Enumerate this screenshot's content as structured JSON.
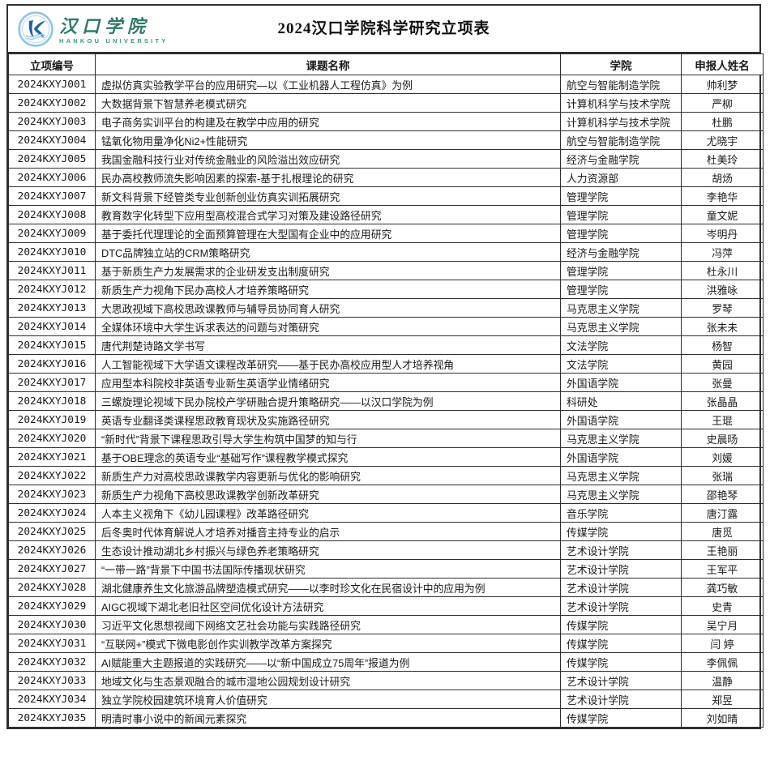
{
  "page": {
    "background": "#ffffff",
    "border_color": "#2f2f2f"
  },
  "header": {
    "logo": {
      "emblem_icon": "university-emblem-icon",
      "emblem_blue": "#1d5fa8",
      "emblem_ring_blue": "#8fc3e8",
      "name_zh": "汉口学院",
      "name_en": "HANKOU  UNIVERSITY",
      "name_zh_color": "#2f7a6e",
      "name_en_color": "#2e9e77"
    },
    "title": "2024汉口学院科学研究立项表"
  },
  "table": {
    "columns": [
      "立项编号",
      "课题名称",
      "学院",
      "申报人姓名"
    ],
    "rows": [
      {
        "id": "2024KXYJ001",
        "title": "虚拟仿真实验教学平台的应用研究—以《工业机器人工程仿真》为例",
        "college": "航空与智能制造学院",
        "applicant": "帅利梦"
      },
      {
        "id": "2024KXYJ002",
        "title": "大数据背景下智慧养老模式研究",
        "college": "计算机科学与技术学院",
        "applicant": "严柳"
      },
      {
        "id": "2024KXYJ003",
        "title": "电子商务实训平台的构建及在教学中应用的研究",
        "college": "计算机科学与技术学院",
        "applicant": "杜鹏"
      },
      {
        "id": "2024KXYJ004",
        "title": "锰氧化物用量净化Ni2+性能研究",
        "college": "航空与智能制造学院",
        "applicant": "尤晓宇"
      },
      {
        "id": "2024KXYJ005",
        "title": "我国金融科技行业对传统金融业的风险溢出效应研究",
        "college": "经济与金融学院",
        "applicant": "杜美玲"
      },
      {
        "id": "2024KXYJ006",
        "title": "民办高校教师流失影响因素的探索-基于扎根理论的研究",
        "college": "人力资源部",
        "applicant": "胡炀"
      },
      {
        "id": "2024KXYJ007",
        "title": "新文科背景下经管类专业创新创业仿真实训拓展研究",
        "college": "管理学院",
        "applicant": "李艳华"
      },
      {
        "id": "2024KXYJ008",
        "title": "教育数字化转型下应用型高校混合式学习对策及建设路径研究",
        "college": "管理学院",
        "applicant": "童文妮"
      },
      {
        "id": "2024KXYJ009",
        "title": "基于委托代理理论的全面预算管理在大型国有企业中的应用研究",
        "college": "管理学院",
        "applicant": "岑明丹"
      },
      {
        "id": "2024KXYJ010",
        "title": "DTC品牌独立站的CRM策略研究",
        "college": "经济与金融学院",
        "applicant": "冯萍"
      },
      {
        "id": "2024KXYJ011",
        "title": "基于新质生产力发展需求的企业研发支出制度研究",
        "college": "管理学院",
        "applicant": "杜永川"
      },
      {
        "id": "2024KXYJ012",
        "title": "新质生产力视角下民办高校人才培养策略研究",
        "college": "管理学院",
        "applicant": "洪雅咏"
      },
      {
        "id": "2024KXYJ013",
        "title": "大思政视域下高校思政课教师与辅导员协同育人研究",
        "college": "马克思主义学院",
        "applicant": "罗琴"
      },
      {
        "id": "2024KXYJ014",
        "title": "全媒体环境中大学生诉求表达的问题与对策研究",
        "college": "马克思主义学院",
        "applicant": "张未未"
      },
      {
        "id": "2024KXYJ015",
        "title": "唐代荆楚诗路文学书写",
        "college": "文法学院",
        "applicant": "杨智"
      },
      {
        "id": "2024KXYJ016",
        "title": "人工智能视域下大学语文课程改革研究——基于民办高校应用型人才培养视角",
        "college": "文法学院",
        "applicant": "黄园"
      },
      {
        "id": "2024KXYJ017",
        "title": "应用型本科院校非英语专业新生英语学业情绪研究",
        "college": "外国语学院",
        "applicant": "张曼"
      },
      {
        "id": "2024KXYJ018",
        "title": "三螺旋理论视域下民办院校产学研融合提升策略研究——以汉口学院为例",
        "college": "科研处",
        "applicant": "张晶晶"
      },
      {
        "id": "2024KXYJ019",
        "title": "英语专业翻译类课程思政教育现状及实施路径研究",
        "college": "外国语学院",
        "applicant": "王琨"
      },
      {
        "id": "2024KXYJ020",
        "title": "“新时代”背景下课程思政引导大学生构筑中国梦的知与行",
        "college": "马克思主义学院",
        "applicant": "史晨旸"
      },
      {
        "id": "2024KXYJ021",
        "title": "基于OBE理念的英语专业“基础写作”课程教学模式探究",
        "college": "外国语学院",
        "applicant": "刘媛"
      },
      {
        "id": "2024KXYJ022",
        "title": "新质生产力对高校思政课教学内容更新与优化的影响研究",
        "college": "马克思主义学院",
        "applicant": "张瑞"
      },
      {
        "id": "2024KXYJ023",
        "title": "新质生产力视角下高校思政课教学创新改革研究",
        "college": "马克思主义学院",
        "applicant": "邵艳琴"
      },
      {
        "id": "2024KXYJ024",
        "title": "人本主义视角下《幼儿园课程》改革路径研究",
        "college": "音乐学院",
        "applicant": "唐汀露"
      },
      {
        "id": "2024KXYJ025",
        "title": "后冬奥时代体育解说人才培养对播音主持专业的启示",
        "college": "传媒学院",
        "applicant": "唐觅"
      },
      {
        "id": "2024KXYJ026",
        "title": "生态设计推动湖北乡村振兴与绿色养老策略研究",
        "college": "艺术设计学院",
        "applicant": "王艳丽"
      },
      {
        "id": "2024KXYJ027",
        "title": "“一带一路”背景下中国书法国际传播现状研究",
        "college": "艺术设计学院",
        "applicant": "王军平"
      },
      {
        "id": "2024KXYJ028",
        "title": "湖北健康养生文化旅游品牌塑造模式研究——以李时珍文化在民宿设计中的应用为例",
        "college": "艺术设计学院",
        "applicant": "龚巧敏"
      },
      {
        "id": "2024KXYJ029",
        "title": "AIGC视域下湖北老旧社区空间优化设计方法研究",
        "college": "艺术设计学院",
        "applicant": "史青"
      },
      {
        "id": "2024KXYJ030",
        "title": "习近平文化思想视阈下网络文艺社会功能与实践路径研究",
        "college": "传媒学院",
        "applicant": "吴宁月"
      },
      {
        "id": "2024KXYJ031",
        "title": "“互联网+”模式下微电影创作实训教学改革方案探究",
        "college": "传媒学院",
        "applicant": "闫 婷"
      },
      {
        "id": "2024KXYJ032",
        "title": "AI赋能重大主题报道的实践研究——以“新中国成立75周年”报道为例",
        "college": "传媒学院",
        "applicant": "李佩佩"
      },
      {
        "id": "2024KXYJ033",
        "title": "地域文化与生态景观融合的城市湿地公园规划设计研究",
        "college": "艺术设计学院",
        "applicant": "温静"
      },
      {
        "id": "2024KXYJ034",
        "title": "独立学院校园建筑环境育人价值研究",
        "college": "艺术设计学院",
        "applicant": "郑昱"
      },
      {
        "id": "2024KXYJ035",
        "title": "明清时事小说中的新闻元素探究",
        "college": "传媒学院",
        "applicant": "刘如晴"
      }
    ]
  }
}
